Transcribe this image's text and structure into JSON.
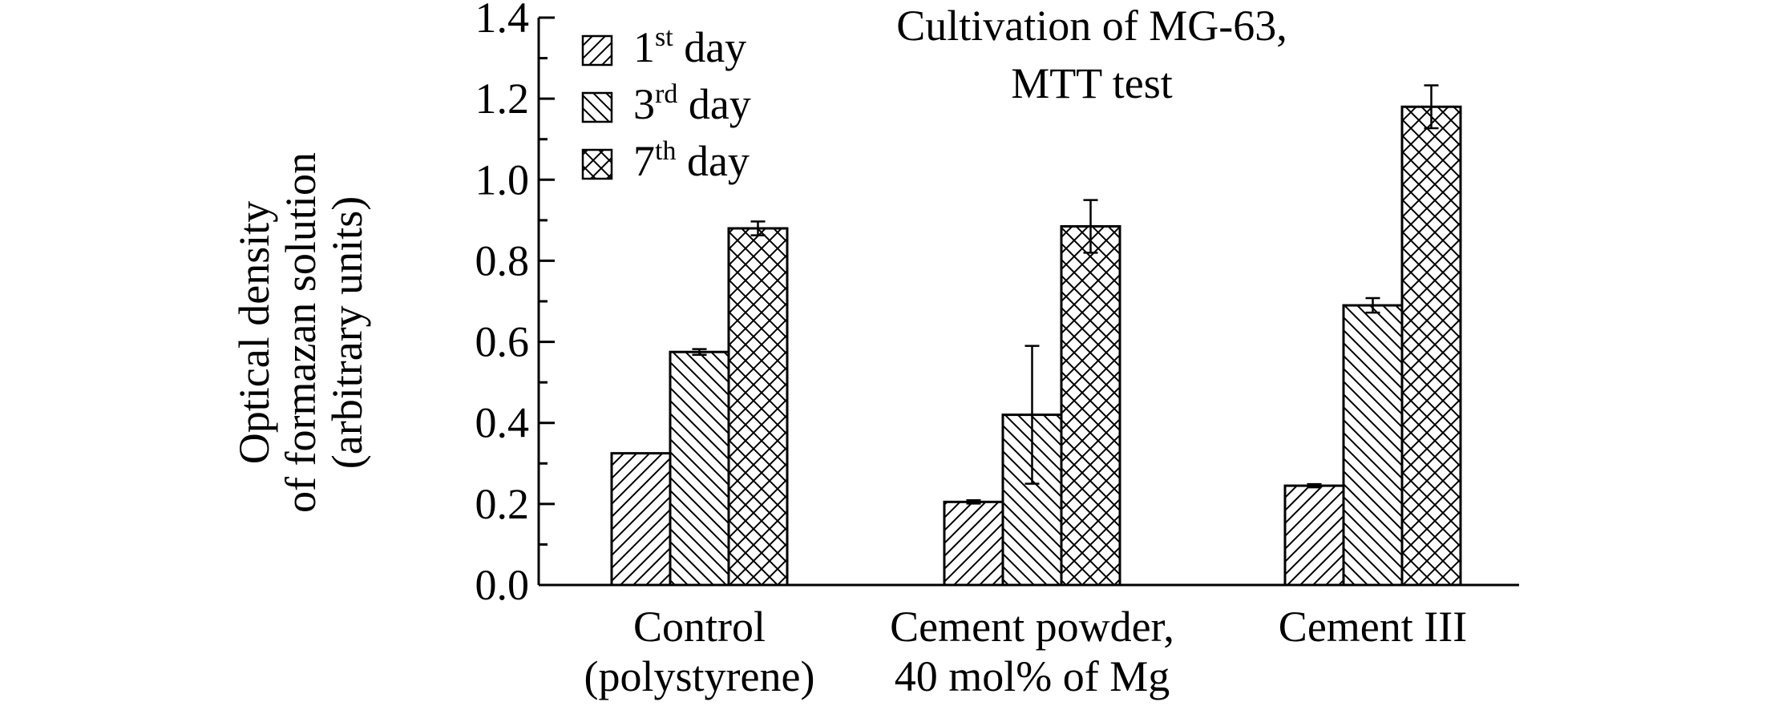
{
  "chart_data": {
    "type": "bar",
    "title_lines": [
      "Cultivation of MG-63,",
      "MTT test"
    ],
    "ylabel_lines": [
      "Optical density",
      "of formazan solution",
      "(arbitrary units)"
    ],
    "xlabel": "",
    "ylim": [
      0,
      1.4
    ],
    "yticks": [
      "0.0",
      "0.2",
      "0.4",
      "0.6",
      "0.8",
      "1.0",
      "1.2",
      "1.4"
    ],
    "y_minor_step": 0.1,
    "grid": false,
    "legend_position": "top-left",
    "categories": [
      [
        "Control",
        "(polystyrene)"
      ],
      [
        "Cement powder,",
        "40 mol% of Mg"
      ],
      [
        "Cement III"
      ]
    ],
    "series": [
      {
        "name": "1st day",
        "name_parts": [
          "1",
          "st",
          " day"
        ],
        "pattern": "diagonal",
        "values": [
          0.325,
          0.205,
          0.245
        ],
        "errors": [
          0.0,
          0.004,
          0.004
        ]
      },
      {
        "name": "3rd day",
        "name_parts": [
          "3",
          "rd",
          " day"
        ],
        "pattern": "back-diagonal",
        "values": [
          0.575,
          0.42,
          0.69
        ],
        "errors": [
          0.007,
          0.17,
          0.018
        ]
      },
      {
        "name": "7th day",
        "name_parts": [
          "7",
          "th",
          " day"
        ],
        "pattern": "crosshatch",
        "values": [
          0.88,
          0.885,
          1.18
        ],
        "errors": [
          0.017,
          0.065,
          0.053
        ]
      }
    ]
  }
}
